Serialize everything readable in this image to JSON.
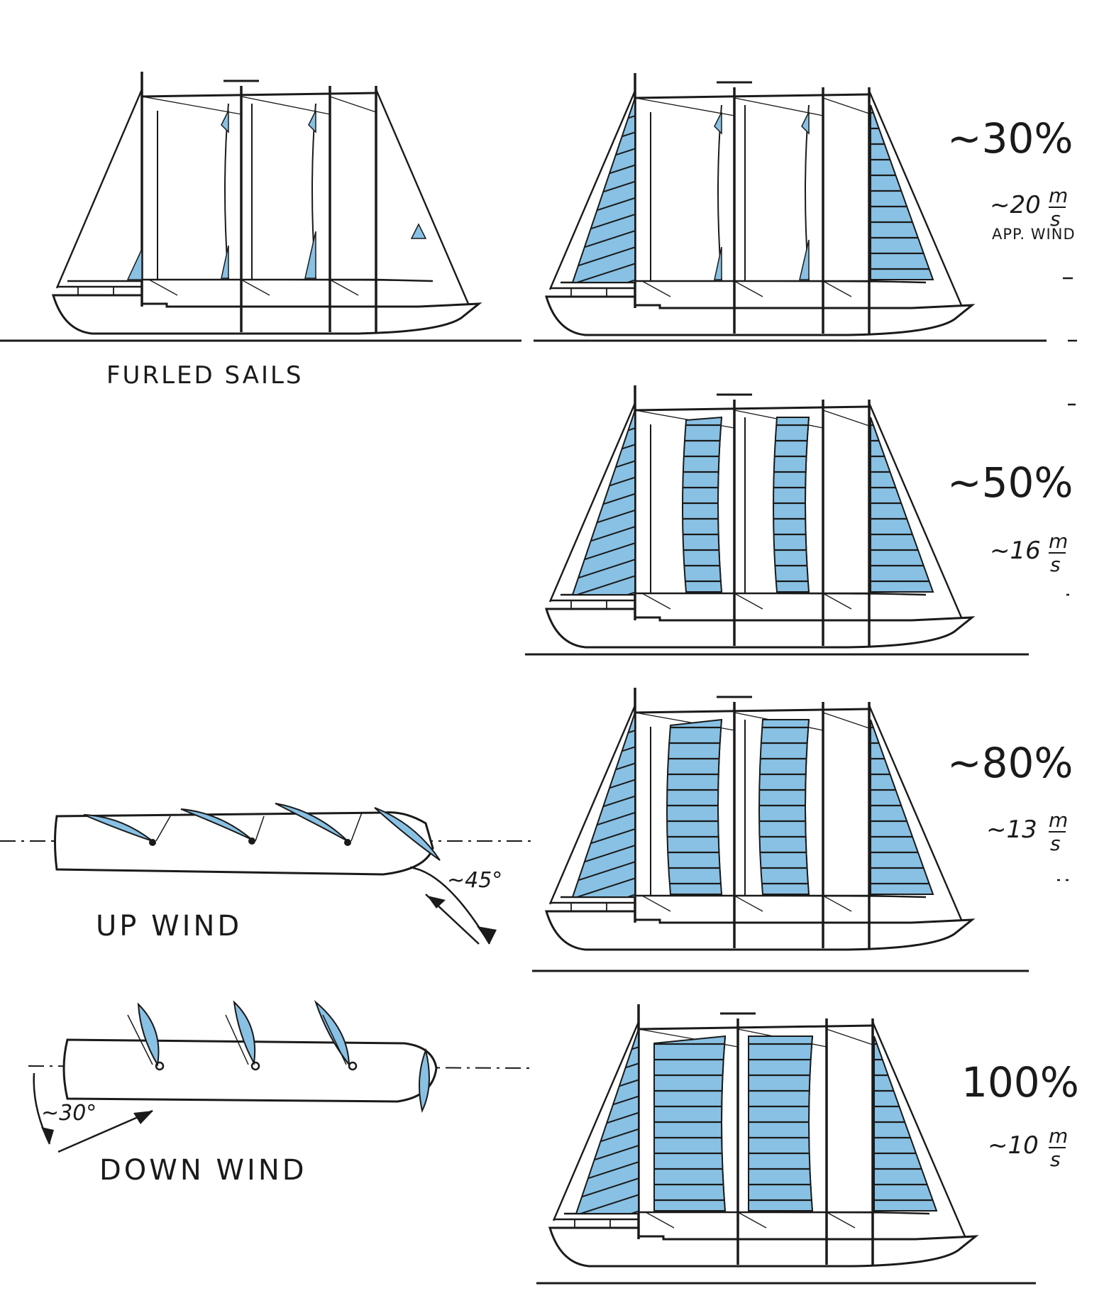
{
  "colors": {
    "sail": "#88c1e4",
    "ink": "#1a1a1a",
    "background": "#ffffff"
  },
  "captions": {
    "furled": "FURLED SAILS",
    "upwind": "UP WIND",
    "downwind": "DOWN WIND"
  },
  "angles": {
    "upwind": "~45°",
    "downwind": "~30°"
  },
  "unit": {
    "numerator": "m",
    "denominator": "s"
  },
  "app_wind": "APP. WIND",
  "configurations": [
    {
      "percent": "~30%",
      "wind": "~20",
      "sail_area_fraction": 0.3
    },
    {
      "percent": "~50%",
      "wind": "~16",
      "sail_area_fraction": 0.5
    },
    {
      "percent": "~80%",
      "wind": "~13",
      "sail_area_fraction": 0.8
    },
    {
      "percent": "100%",
      "wind": "~10",
      "sail_area_fraction": 1.0
    }
  ]
}
